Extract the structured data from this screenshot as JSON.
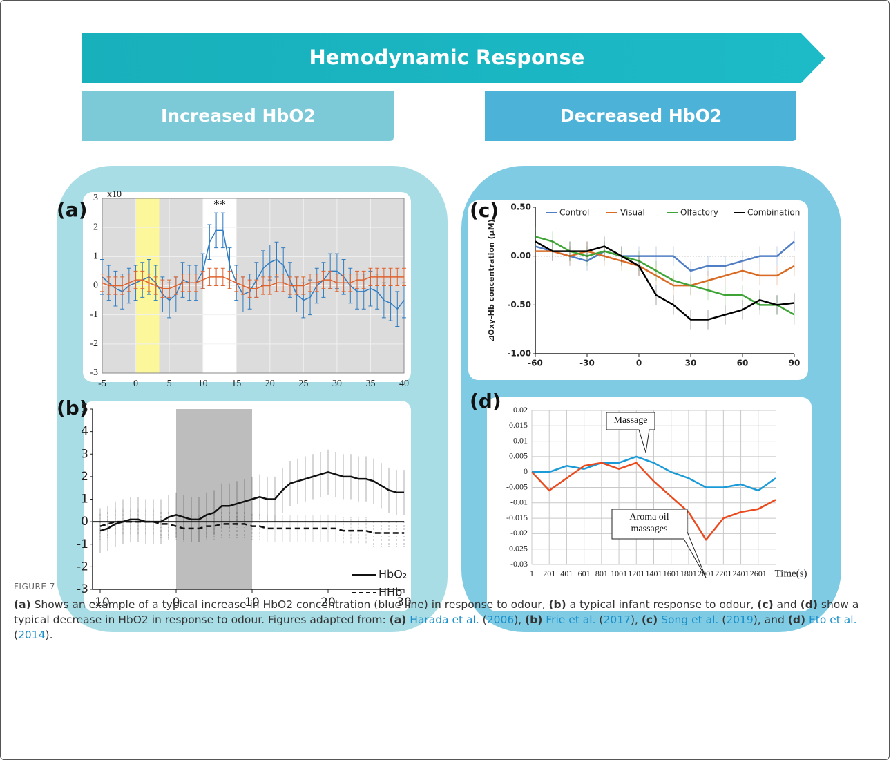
{
  "banner": "Hemodynamic Response",
  "left_header": "Increased HbO2",
  "right_header": "Decreased HbO2",
  "panel_labels": [
    "(a)",
    "(b)",
    "(c)",
    "(d)"
  ],
  "chart_data": [
    {
      "type": "line",
      "y_multiplier": "x10",
      "annotations": [
        "**"
      ],
      "xlim": [
        -5,
        40
      ],
      "xticks": [
        -5,
        0,
        5,
        10,
        15,
        20,
        25,
        30,
        35,
        40
      ],
      "ylim": [
        -3,
        3
      ],
      "yticks": [
        -3,
        -2,
        -1,
        0,
        1,
        2,
        3
      ],
      "grid": true,
      "bands": [
        {
          "from": -5,
          "to": 10,
          "color": "#dcdcdc"
        },
        {
          "from": 15,
          "to": 40,
          "color": "#dcdcdc"
        },
        {
          "from": 0,
          "to": 3.5,
          "color": "#fbf79a"
        }
      ],
      "x": [
        -5,
        -4,
        -3,
        -2,
        -1,
        0,
        1,
        2,
        3,
        4,
        5,
        6,
        7,
        8,
        9,
        10,
        11,
        12,
        13,
        14,
        15,
        16,
        17,
        18,
        19,
        20,
        21,
        22,
        23,
        24,
        25,
        26,
        27,
        28,
        29,
        30,
        31,
        32,
        33,
        34,
        35,
        36,
        37,
        38,
        39,
        40
      ],
      "series": [
        {
          "color": "#2f7cc0",
          "error": 0.6,
          "values": [
            0.3,
            0.1,
            -0.1,
            -0.2,
            0,
            0.1,
            0.2,
            0.3,
            0.1,
            -0.3,
            -0.5,
            -0.3,
            0.2,
            0.1,
            0.1,
            0.5,
            1.5,
            1.9,
            1.9,
            0.7,
            0.1,
            -0.3,
            -0.2,
            0.2,
            0.6,
            0.8,
            0.9,
            0.7,
            0.2,
            -0.3,
            -0.5,
            -0.4,
            0,
            0.2,
            0.5,
            0.5,
            0.3,
            0,
            -0.2,
            -0.2,
            -0.1,
            -0.2,
            -0.5,
            -0.6,
            -0.8,
            -0.5
          ]
        },
        {
          "color": "#e0622d",
          "error": 0.3,
          "values": [
            0.1,
            0,
            0,
            0,
            0.1,
            0.2,
            0.2,
            0.1,
            0,
            -0.1,
            -0.1,
            0,
            0.1,
            0.1,
            0.1,
            0.2,
            0.3,
            0.3,
            0.3,
            0.2,
            0.1,
            0,
            -0.1,
            -0.1,
            0,
            0,
            0.1,
            0.1,
            0,
            0,
            0,
            0.1,
            0.1,
            0.2,
            0.2,
            0.1,
            0.1,
            0.1,
            0.2,
            0.2,
            0.3,
            0.3,
            0.3,
            0.3,
            0.3,
            0.3
          ]
        }
      ]
    },
    {
      "type": "line",
      "legend": "lower right",
      "zero_line": true,
      "xlim": [
        -11,
        30
      ],
      "xticks": [
        -10,
        0,
        10,
        20,
        30
      ],
      "ylim": [
        -3,
        5
      ],
      "yticks": [
        -3,
        -2,
        -1,
        0,
        1,
        2,
        3,
        4,
        5
      ],
      "grid": false,
      "bands": [
        {
          "from": 0,
          "to": 10,
          "color": "#bdbdbd"
        }
      ],
      "x": [
        -10,
        -9,
        -8,
        -7,
        -6,
        -5,
        -4,
        -3,
        -2,
        -1,
        0,
        1,
        2,
        3,
        4,
        5,
        6,
        7,
        8,
        9,
        10,
        11,
        12,
        13,
        14,
        15,
        16,
        17,
        18,
        19,
        20,
        21,
        22,
        23,
        24,
        25,
        26,
        27,
        28,
        29,
        30
      ],
      "series": [
        {
          "name": "HbO₂",
          "color": "#111111",
          "error": 1.0,
          "values": [
            -0.4,
            -0.3,
            -0.1,
            0,
            0.1,
            0.1,
            0,
            0,
            0,
            0.2,
            0.3,
            0.2,
            0.1,
            0.1,
            0.3,
            0.4,
            0.7,
            0.7,
            0.8,
            0.9,
            1.0,
            1.1,
            1.0,
            1.0,
            1.4,
            1.7,
            1.8,
            1.9,
            2.0,
            2.1,
            2.2,
            2.1,
            2.0,
            2.0,
            1.9,
            1.9,
            1.8,
            1.6,
            1.4,
            1.3,
            1.3
          ]
        },
        {
          "name": "HHb",
          "color": "#111111",
          "dash": true,
          "error": 0.6,
          "values": [
            -0.2,
            -0.1,
            0,
            0,
            0,
            0,
            0,
            0,
            -0.1,
            -0.1,
            -0.2,
            -0.3,
            -0.3,
            -0.3,
            -0.2,
            -0.2,
            -0.1,
            -0.1,
            -0.1,
            -0.1,
            -0.2,
            -0.2,
            -0.3,
            -0.3,
            -0.3,
            -0.3,
            -0.3,
            -0.3,
            -0.3,
            -0.3,
            -0.3,
            -0.3,
            -0.4,
            -0.4,
            -0.4,
            -0.4,
            -0.5,
            -0.5,
            -0.5,
            -0.5,
            -0.5
          ]
        }
      ]
    },
    {
      "type": "line",
      "legend": "top",
      "zero_line": true,
      "y_label": "⊿Oxy-Hb concentration (μM)",
      "xlim": [
        -60,
        90
      ],
      "xticks": [
        -60,
        -30,
        0,
        30,
        60,
        90
      ],
      "ylim": [
        -1.0,
        0.5
      ],
      "yticks": [
        {
          "value": -1.0,
          "label": "-1.00"
        },
        {
          "value": -0.5,
          "label": "-0.50"
        },
        {
          "value": 0,
          "label": "0.00"
        },
        {
          "value": 0.5,
          "label": "0.50"
        }
      ],
      "grid": false,
      "x": [
        -60,
        -50,
        -40,
        -30,
        -20,
        -10,
        0,
        10,
        20,
        30,
        40,
        50,
        60,
        70,
        80,
        90
      ],
      "series": [
        {
          "name": "Control",
          "color": "#4f7ec4",
          "error": 0.1,
          "values": [
            0.1,
            0.05,
            0,
            -0.05,
            0.05,
            0,
            0,
            0,
            0,
            -0.15,
            -0.1,
            -0.1,
            -0.05,
            0,
            0,
            0.15
          ]
        },
        {
          "name": "Visual",
          "color": "#d86a24",
          "error": 0.1,
          "values": [
            0.05,
            0.05,
            0,
            0.05,
            0,
            -0.05,
            -0.1,
            -0.2,
            -0.3,
            -0.3,
            -0.25,
            -0.2,
            -0.15,
            -0.2,
            -0.2,
            -0.1
          ]
        },
        {
          "name": "Olfactory",
          "color": "#3fa436",
          "error": 0.1,
          "values": [
            0.2,
            0.15,
            0.05,
            0,
            0.05,
            0,
            -0.05,
            -0.15,
            -0.25,
            -0.3,
            -0.35,
            -0.4,
            -0.4,
            -0.5,
            -0.5,
            -0.6
          ]
        },
        {
          "name": "Combination",
          "color": "#000000",
          "error": 0.1,
          "values": [
            0.15,
            0.05,
            0.05,
            0.05,
            0.1,
            0,
            -0.1,
            -0.4,
            -0.5,
            -0.65,
            -0.65,
            -0.6,
            -0.55,
            -0.45,
            -0.5,
            -0.48
          ]
        }
      ]
    },
    {
      "type": "line",
      "x_label": "Time(s)",
      "annotations": [
        "Massage",
        "Aroma oil massages"
      ],
      "xlim": [
        1,
        2801
      ],
      "xticks": [
        1,
        201,
        401,
        601,
        801,
        1001,
        1201,
        1401,
        1601,
        1801,
        2001,
        2201,
        2401,
        2601
      ],
      "ylim": [
        -0.03,
        0.02
      ],
      "yticks": [
        -0.03,
        -0.025,
        -0.02,
        -0.015,
        -0.01,
        -0.005,
        0,
        0.005,
        0.01,
        0.015,
        0.02
      ],
      "grid": true,
      "x": [
        1,
        201,
        401,
        601,
        801,
        1001,
        1201,
        1401,
        1601,
        1801,
        2001,
        2201,
        2401,
        2601,
        2801
      ],
      "series": [
        {
          "color": "#1a9ad6",
          "values": [
            0,
            0,
            0.002,
            0.001,
            0.003,
            0.003,
            0.005,
            0.003,
            0,
            -0.002,
            -0.005,
            -0.005,
            -0.004,
            -0.006,
            -0.002
          ]
        },
        {
          "color": "#ea4a1e",
          "values": [
            0,
            -0.006,
            -0.002,
            0.002,
            0.003,
            0.001,
            0.003,
            -0.003,
            -0.008,
            -0.013,
            -0.022,
            -0.015,
            -0.013,
            -0.012,
            -0.009
          ]
        }
      ]
    }
  ],
  "caption": {
    "label": "FIGURE 7",
    "runs": [
      {
        "text": "(a)",
        "style": "bold"
      },
      {
        "text": " Shows an example of a typical increase in HbO2 concentration (blue line) in response to odour, ",
        "style": "plain"
      },
      {
        "text": "(b)",
        "style": "bold"
      },
      {
        "text": " a typical infant response to odour, ",
        "style": "plain"
      },
      {
        "text": "(c)",
        "style": "bold"
      },
      {
        "text": " and ",
        "style": "plain"
      },
      {
        "text": "(d)",
        "style": "bold"
      },
      {
        "text": " show a typical decrease in HbO2 in response to odour. Figures adapted from: ",
        "style": "plain"
      },
      {
        "text": "(a)",
        "style": "bold"
      },
      {
        "text": " ",
        "style": "plain"
      },
      {
        "text": "Harada et al.",
        "style": "link"
      },
      {
        "text": " (",
        "style": "plain"
      },
      {
        "text": "2006",
        "style": "link"
      },
      {
        "text": "), ",
        "style": "plain"
      },
      {
        "text": "(b)",
        "style": "bold"
      },
      {
        "text": " ",
        "style": "plain"
      },
      {
        "text": "Frie et al.",
        "style": "link"
      },
      {
        "text": " (",
        "style": "plain"
      },
      {
        "text": "2017",
        "style": "link"
      },
      {
        "text": "), ",
        "style": "plain"
      },
      {
        "text": "(c)",
        "style": "bold"
      },
      {
        "text": " ",
        "style": "plain"
      },
      {
        "text": "Song et al.",
        "style": "link"
      },
      {
        "text": " (",
        "style": "plain"
      },
      {
        "text": "2019",
        "style": "link"
      },
      {
        "text": "), and ",
        "style": "plain"
      },
      {
        "text": "(d)",
        "style": "bold"
      },
      {
        "text": " ",
        "style": "plain"
      },
      {
        "text": "Eto et al.",
        "style": "link"
      },
      {
        "text": " (",
        "style": "plain"
      },
      {
        "text": "2014",
        "style": "link"
      },
      {
        "text": ").",
        "style": "plain"
      }
    ]
  }
}
